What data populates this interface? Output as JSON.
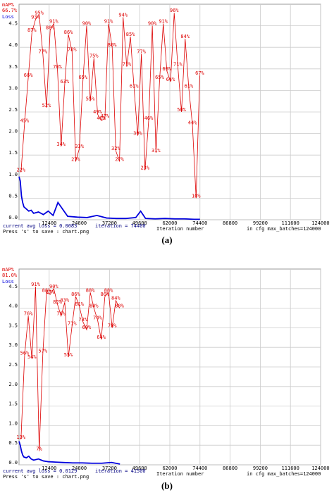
{
  "chart_data": [
    {
      "type": "line",
      "panel_label": "(a)",
      "y2_label": "mAP%",
      "best_map": "66.7%",
      "y_label": "Loss",
      "footer_loss": "current avg loss = 0.0083",
      "footer_iteration": "iteration = 74400",
      "footer_save": "Press 's' to save : chart.png",
      "x_label": "Iteration number",
      "footer_cfg": "in cfg max_batches=124000",
      "xlim": [
        0,
        124000
      ],
      "xticks": [
        12400,
        24800,
        37200,
        49600,
        62000,
        74400,
        86800,
        99200,
        111600,
        124000
      ],
      "ylim": [
        0,
        5
      ],
      "yticks": [
        {
          "value": 0,
          "label": "0.0"
        },
        0.5,
        {
          "value": 1,
          "label": "1.0"
        },
        1.5,
        {
          "value": 2,
          "label": "2.0"
        },
        2.5,
        {
          "value": 3,
          "label": "3.0"
        },
        3.5,
        {
          "value": 4,
          "label": "4.0"
        },
        4.5
      ],
      "y2lim": [
        0,
        100
      ],
      "grid": true,
      "series": [
        {
          "name": "Loss",
          "color": "#0000dd",
          "x": [
            0,
            500,
            1000,
            1500,
            2000,
            3000,
            4000,
            5000,
            6000,
            8000,
            10000,
            12000,
            14000,
            16000,
            20000,
            24000,
            28000,
            32000,
            36000,
            40000,
            44000,
            48000,
            50000,
            52000,
            56000,
            60000,
            64000,
            68000,
            72000,
            74400
          ],
          "values": [
            1.0,
            0.9,
            0.55,
            0.4,
            0.3,
            0.25,
            0.2,
            0.22,
            0.15,
            0.18,
            0.12,
            0.2,
            0.1,
            0.4,
            0.08,
            0.06,
            0.05,
            0.1,
            0.04,
            0.03,
            0.03,
            0.05,
            0.2,
            0.03,
            0.02,
            0.03,
            0.02,
            0.02,
            0.01,
            0.01
          ]
        },
        {
          "name": "mAP%",
          "color": "#dd0000",
          "axis": "y2",
          "x": [
            800,
            2300,
            3800,
            5300,
            6800,
            8300,
            9800,
            11300,
            12800,
            14300,
            15800,
            17300,
            18800,
            20300,
            21800,
            23300,
            24800,
            26300,
            27800,
            29300,
            30800,
            32300,
            33800,
            35300,
            36800,
            38300,
            39800,
            41300,
            42800,
            44300,
            45800,
            47300,
            48800,
            50300,
            51800,
            53300,
            54800,
            56300,
            57800,
            59300,
            60800,
            62300,
            63800,
            65300,
            66800,
            68300,
            69800,
            71300,
            72800,
            74300
          ],
          "values": [
            22,
            45,
            66,
            87,
            93,
            95,
            77,
            52,
            88,
            91,
            70,
            34,
            63,
            86,
            78,
            27,
            33,
            65,
            90,
            55,
            75,
            49,
            46,
            47,
            91,
            80,
            32,
            27,
            94,
            71,
            85,
            61,
            39,
            77,
            23,
            46,
            90,
            31,
            65,
            91,
            69,
            64,
            96,
            71,
            50,
            84,
            61,
            44,
            10,
            67
          ],
          "value_labels": [
            "22%",
            "45%",
            "66%",
            "87%",
            "93%",
            "95%",
            "77%",
            "52%",
            "88%",
            "91%",
            "70%",
            "34%",
            "63%",
            "86%",
            "78%",
            "27%",
            "33%",
            "65%",
            "90%",
            "55%",
            "75%",
            "49%",
            "46%",
            "47%",
            "91%",
            "80%",
            "32%",
            "27%",
            "94%",
            "71%",
            "85%",
            "61%",
            "39%",
            "77%",
            "23%",
            "46%",
            "90%",
            "31%",
            "65%",
            "91%",
            "69%",
            "64%",
            "96%",
            "71%",
            "50%",
            "84%",
            "61%",
            "44%",
            "10%",
            "67%"
          ]
        }
      ]
    },
    {
      "type": "line",
      "panel_label": "(b)",
      "y2_label": "mAP%",
      "best_map": "81.0%",
      "y_label": "Loss",
      "footer_loss": "current avg loss = 0.0129",
      "footer_iteration": "iteration = 41500",
      "footer_save": "Press 's' to save : chart.png",
      "x_label": "Iteration number",
      "footer_cfg": "in cfg max_batches=124000",
      "xlim": [
        0,
        124000
      ],
      "xticks": [
        12400,
        24800,
        37200,
        49600,
        62000,
        74400,
        86800,
        99200,
        111600,
        124000
      ],
      "ylim": [
        0,
        5
      ],
      "yticks": [
        {
          "value": 0,
          "label": "0.0"
        },
        0.5,
        {
          "value": 1,
          "label": "1.0"
        },
        1.5,
        {
          "value": 2,
          "label": "2.0"
        },
        2.5,
        {
          "value": 3,
          "label": "3.0"
        },
        3.5,
        {
          "value": 4,
          "label": "4.0"
        },
        4.5
      ],
      "y2lim": [
        0,
        100
      ],
      "grid": true,
      "series": [
        {
          "name": "Loss",
          "color": "#0000dd",
          "x": [
            0,
            500,
            1000,
            1500,
            2000,
            3000,
            4000,
            5000,
            6000,
            8000,
            10000,
            12000,
            15000,
            18000,
            22000,
            26000,
            30000,
            34000,
            38000,
            41500
          ],
          "values": [
            0.6,
            0.5,
            0.35,
            0.25,
            0.2,
            0.18,
            0.22,
            0.15,
            0.12,
            0.15,
            0.1,
            0.08,
            0.07,
            0.06,
            0.05,
            0.05,
            0.04,
            0.04,
            0.06,
            0.02
          ]
        },
        {
          "name": "mAP%",
          "color": "#dd0000",
          "axis": "y2",
          "x": [
            800,
            2300,
            3800,
            5300,
            6800,
            8300,
            9800,
            11300,
            12800,
            14300,
            15800,
            17300,
            18800,
            20300,
            21800,
            23300,
            24800,
            26300,
            27800,
            29300,
            30800,
            32300,
            33800,
            35300,
            36800,
            38300,
            39800,
            41300
          ],
          "values": [
            13,
            56,
            76,
            54,
            91,
            7,
            57,
            88,
            87,
            90,
            82,
            76,
            83,
            55,
            71,
            86,
            81,
            73,
            69,
            88,
            80,
            74,
            64,
            86,
            88,
            70,
            84,
            80
          ],
          "value_labels": [
            "13%",
            "56%",
            "76%",
            "54%",
            "91%",
            "7%",
            "57%",
            "88%",
            "87%",
            "90%",
            "82%",
            "76%",
            "83%",
            "55%",
            "71%",
            "86%",
            "81%",
            "73%",
            "69%",
            "88%",
            "80%",
            "74%",
            "64%",
            "86%",
            "88%",
            "70%",
            "84%",
            "80%"
          ]
        }
      ]
    }
  ]
}
